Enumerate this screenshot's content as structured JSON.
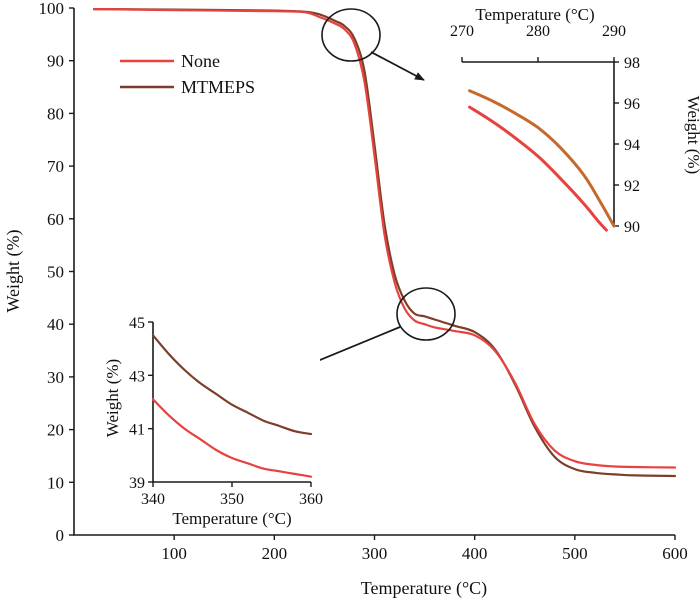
{
  "chart_data": [
    {
      "type": "line",
      "title": "",
      "xlabel": "Temperature (°C)",
      "ylabel": "Weight (%)",
      "xlim": [
        0,
        600
      ],
      "ylim": [
        0,
        100
      ],
      "xticks": [
        100,
        200,
        300,
        400,
        500,
        600
      ],
      "yticks": [
        0,
        10,
        20,
        30,
        40,
        50,
        60,
        70,
        80,
        90,
        100
      ],
      "grid": false,
      "legend": "upper-left",
      "series": [
        {
          "name": "None",
          "color": "#e8423f",
          "x": [
            20,
            100,
            200,
            230,
            245,
            260,
            270,
            280,
            290,
            300,
            310,
            320,
            330,
            340,
            350,
            360,
            380,
            400,
            420,
            440,
            460,
            480,
            500,
            520,
            540,
            560,
            600
          ],
          "y": [
            99.8,
            99.6,
            99.4,
            99.2,
            98.3,
            97.1,
            96.0,
            93.2,
            86.0,
            72.0,
            57.0,
            48.0,
            43.0,
            40.7,
            40.0,
            39.4,
            38.7,
            37.9,
            35.0,
            29.0,
            21.0,
            16.0,
            14.0,
            13.3,
            13.0,
            12.9,
            12.8
          ]
        },
        {
          "name": "MTMEPS",
          "color": "#7b3f2a",
          "x": [
            20,
            100,
            200,
            230,
            245,
            260,
            270,
            280,
            290,
            300,
            310,
            320,
            330,
            340,
            350,
            360,
            380,
            400,
            420,
            440,
            460,
            480,
            500,
            520,
            540,
            560,
            600
          ],
          "y": [
            99.8,
            99.7,
            99.5,
            99.3,
            98.8,
            97.6,
            96.6,
            94.2,
            88.0,
            74.0,
            59.0,
            49.5,
            44.5,
            42.0,
            41.5,
            40.9,
            39.7,
            38.5,
            35.3,
            28.7,
            20.5,
            14.8,
            12.5,
            11.8,
            11.5,
            11.3,
            11.2
          ]
        }
      ],
      "annotations": [
        {
          "type": "circle",
          "center": [
            282,
            93
          ],
          "target": "inset-top-right"
        },
        {
          "type": "circle",
          "center": [
            352,
            41
          ],
          "target": "inset-bottom-left"
        }
      ]
    },
    {
      "type": "line",
      "title": "",
      "xlabel": "Temperature (°C)",
      "ylabel": "Weight (%)",
      "xlim": [
        270,
        290
      ],
      "ylim": [
        90,
        98
      ],
      "xticks": [
        270,
        280,
        290
      ],
      "yticks": [
        90,
        92,
        94,
        96,
        98
      ],
      "grid": false,
      "series": [
        {
          "name": "None",
          "color": "#e8423f",
          "x": [
            271,
            274,
            277,
            280,
            283,
            286,
            288,
            289
          ],
          "y": [
            95.8,
            95.1,
            94.3,
            93.4,
            92.3,
            91.1,
            90.2,
            89.8
          ]
        },
        {
          "name": "MTMEPS",
          "color": "#c36a2c",
          "x": [
            271,
            274,
            277,
            280,
            283,
            286,
            288,
            290
          ],
          "y": [
            96.6,
            96.1,
            95.5,
            94.8,
            93.8,
            92.5,
            91.3,
            90.0
          ]
        }
      ]
    },
    {
      "type": "line",
      "title": "",
      "xlabel": "Temperature (°C)",
      "ylabel": "Weight (%)",
      "xlim": [
        340,
        360
      ],
      "ylim": [
        39,
        45
      ],
      "xticks": [
        340,
        350,
        360
      ],
      "yticks": [
        39,
        41,
        43,
        45
      ],
      "grid": false,
      "series": [
        {
          "name": "None",
          "color": "#e8423f",
          "x": [
            340,
            342,
            344,
            346,
            348,
            350,
            352,
            354,
            356,
            358,
            360
          ],
          "y": [
            42.1,
            41.5,
            41.0,
            40.6,
            40.2,
            39.9,
            39.7,
            39.5,
            39.4,
            39.3,
            39.2
          ]
        },
        {
          "name": "MTMEPS",
          "color": "#7b3f2a",
          "x": [
            340,
            342,
            344,
            346,
            348,
            350,
            352,
            354,
            356,
            358,
            360
          ],
          "y": [
            44.5,
            43.8,
            43.2,
            42.7,
            42.3,
            41.9,
            41.6,
            41.3,
            41.1,
            40.9,
            40.8
          ]
        }
      ]
    }
  ]
}
